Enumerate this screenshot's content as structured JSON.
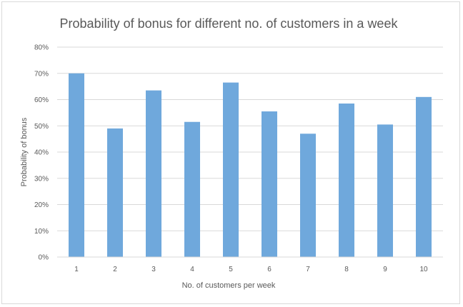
{
  "chart_data": {
    "type": "bar",
    "title": "Probability of bonus for different no. of customers in a week",
    "xlabel": "No. of customers per week",
    "ylabel": "Probability of bonus",
    "categories": [
      "1",
      "2",
      "3",
      "4",
      "5",
      "6",
      "7",
      "8",
      "9",
      "10"
    ],
    "values": [
      0.7,
      0.49,
      0.635,
      0.515,
      0.665,
      0.555,
      0.47,
      0.585,
      0.505,
      0.61
    ],
    "ylim": [
      0,
      0.8
    ],
    "yticks": [
      0,
      0.1,
      0.2,
      0.3,
      0.4,
      0.5,
      0.6,
      0.7,
      0.8
    ],
    "ytick_labels": [
      "0%",
      "10%",
      "20%",
      "30%",
      "40%",
      "50%",
      "60%",
      "70%",
      "80%"
    ],
    "grid": true,
    "legend": "none",
    "bar_color": "#6fa8dc",
    "grid_color": "#d9d9d9",
    "text_color": "#595959"
  }
}
